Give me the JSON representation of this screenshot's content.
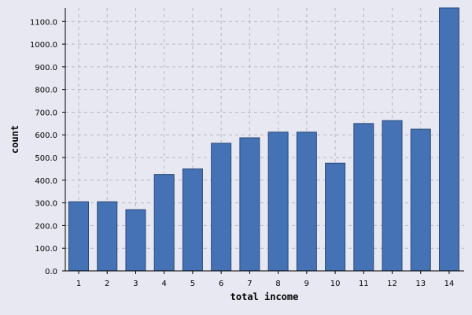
{
  "chart_data": {
    "type": "bar",
    "categories": [
      "1",
      "2",
      "3",
      "4",
      "5",
      "6",
      "7",
      "8",
      "9",
      "10",
      "11",
      "12",
      "13",
      "14"
    ],
    "values": [
      305,
      305,
      270,
      425,
      450,
      563,
      587,
      612,
      612,
      475,
      650,
      663,
      625,
      1163
    ],
    "title": "",
    "xlabel": "total income",
    "ylabel": "count",
    "ylim": [
      0,
      1160
    ],
    "yticks": [
      "0.0",
      "100.0",
      "200.0",
      "300.0",
      "400.0",
      "500.0",
      "600.0",
      "700.0",
      "800.0",
      "900.0",
      "1000.0",
      "1100.0"
    ],
    "grid": true,
    "colors": {
      "bar": "#4472b4",
      "bar_edge": "#2a4a7a",
      "background": "#e8e8f2"
    }
  }
}
